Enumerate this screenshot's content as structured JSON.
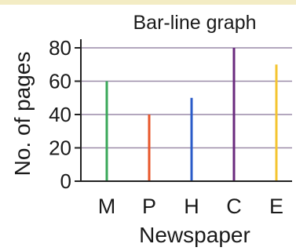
{
  "colors": {
    "background": "#ffffff",
    "axis": "#222222",
    "grid": "#9a8aa8",
    "text": "#1a1a1a",
    "top_band": "#f3ecc4"
  },
  "chart_data": {
    "type": "bar",
    "title": "Bar-line graph",
    "xlabel": "Newspaper",
    "ylabel": "No. of pages",
    "categories": [
      "M",
      "P",
      "H",
      "C",
      "E"
    ],
    "values": [
      60,
      40,
      50,
      80,
      70
    ],
    "series_colors": [
      "#3aa85a",
      "#e8562a",
      "#2a5bc8",
      "#6a2a7e",
      "#f4c430"
    ],
    "yticks": [
      "0",
      "20",
      "40",
      "60",
      "80"
    ],
    "ylim": [
      0,
      80
    ],
    "grid": true,
    "legend": "none"
  }
}
